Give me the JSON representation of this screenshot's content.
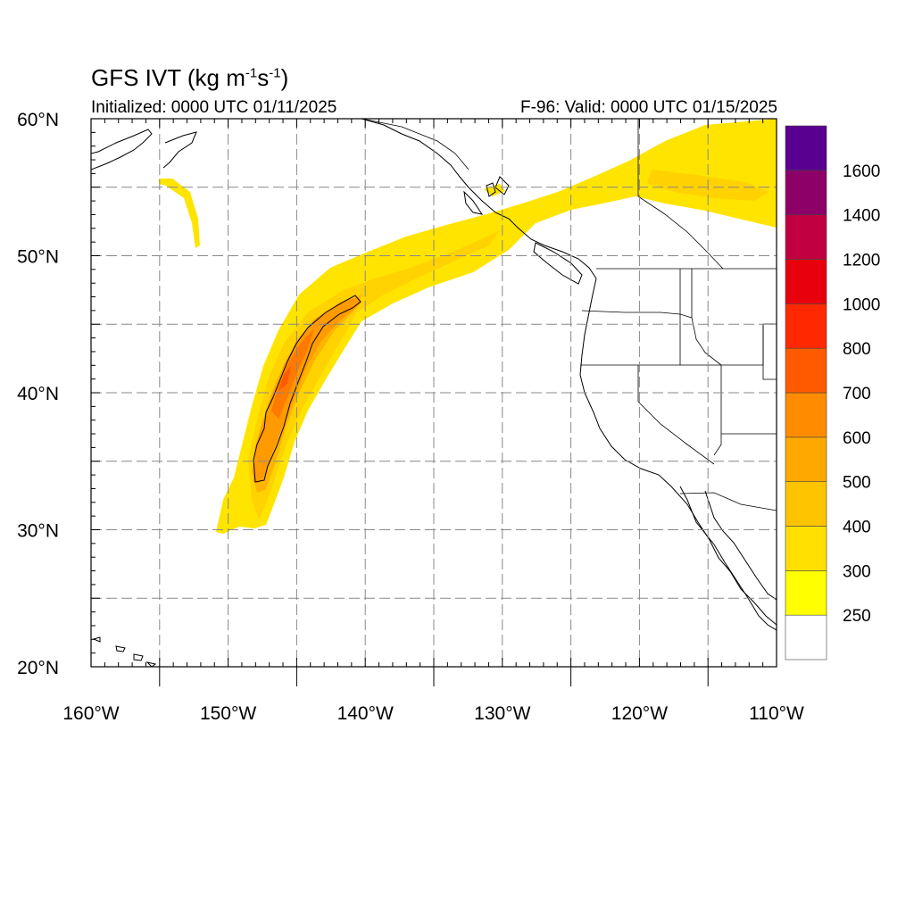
{
  "title": {
    "text": "GFS IVT (kg m",
    "sup1": "-1",
    "mid": "s",
    "sup2": "-1",
    "end": ")"
  },
  "subtitle_left": "Initialized: 0000 UTC 01/11/2025",
  "subtitle_right": "F-96: Valid: 0000 UTC 01/15/2025",
  "map": {
    "lon_range": [
      -160,
      -110
    ],
    "lat_range": [
      20,
      60
    ],
    "lon_ticks": [
      {
        "value": -160,
        "label": "160°W"
      },
      {
        "value": -150,
        "label": "150°W"
      },
      {
        "value": -140,
        "label": "140°W"
      },
      {
        "value": -130,
        "label": "130°W"
      },
      {
        "value": -120,
        "label": "120°W"
      },
      {
        "value": -110,
        "label": "110°W"
      }
    ],
    "lat_ticks": [
      {
        "value": 60,
        "label": "60°N"
      },
      {
        "value": 50,
        "label": "50°N"
      },
      {
        "value": 40,
        "label": "40°N"
      },
      {
        "value": 30,
        "label": "30°N"
      },
      {
        "value": 20,
        "label": "20°N"
      }
    ],
    "grid": "dashed every 5 degrees"
  },
  "colorbar": {
    "labels": [
      "250",
      "300",
      "400",
      "500",
      "600",
      "700",
      "800",
      "1000",
      "1200",
      "1400",
      "1600"
    ],
    "colors": [
      "#ffffff",
      "#ffff00",
      "#ffe000",
      "#ffc400",
      "#ffa800",
      "#ff8c00",
      "#ff5a00",
      "#ff2800",
      "#e8000c",
      "#c00040",
      "#8c0068",
      "#5a0090"
    ]
  },
  "chart_data": {
    "type": "heatmap",
    "variable": "IVT",
    "units": "kg m-1 s-1",
    "features": [
      {
        "name": "atmospheric river core (>=600)",
        "approx_peak": 700,
        "from": [
          -148,
          33.5
        ],
        "to": [
          -141,
          47
        ]
      },
      {
        "name": "atmospheric river plume (>=250)",
        "from": [
          -152,
          30
        ],
        "to": [
          -110,
          57
        ]
      }
    ]
  }
}
